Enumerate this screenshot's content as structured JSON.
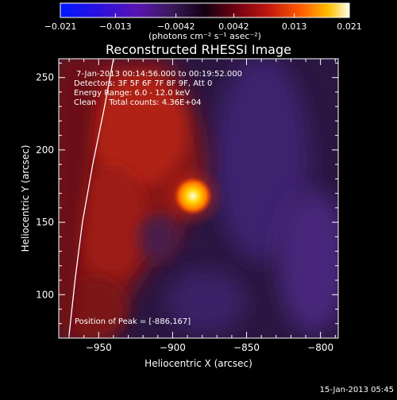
{
  "colorbar": {
    "tick_labels": [
      "−0.021",
      "−0.013",
      "−0.0042",
      "0.0042",
      "0.013",
      "0.021"
    ],
    "unit_label": "(photons cm⁻² s⁻¹ asec⁻²)",
    "range": [
      -0.021,
      0.021
    ]
  },
  "title": "Reconstructed RHESSI Image",
  "annotations": {
    "time_range": "7-Jan-2013 00:14:56.000 to 00:19:52.000",
    "detectors": "Detectors: 3F 5F 6F 7F 8F 9F, Att 0",
    "energy_range": "Energy Range: 6.0 - 12.0 keV",
    "clean_counts": "Clean     Total counts: 4.36E+04",
    "peak": "Position of Peak = [-886,167]"
  },
  "axes": {
    "xlabel": "Heliocentric X (arcsec)",
    "ylabel": "Heliocentric Y (arcsec)",
    "xlim": [
      -977,
      -788
    ],
    "ylim": [
      70,
      263
    ],
    "xticks": [
      -950,
      -900,
      -850,
      -800
    ],
    "xtick_labels": [
      "−950",
      "−900",
      "−850",
      "−800"
    ],
    "yticks": [
      100,
      150,
      200,
      250
    ],
    "ytick_labels": [
      "100",
      "150",
      "200",
      "250"
    ]
  },
  "footer": {
    "timestamp": "15-Jan-2013 05:45"
  },
  "chart_data": {
    "type": "heatmap",
    "title": "Reconstructed RHESSI Image",
    "xlabel": "Heliocentric X (arcsec)",
    "ylabel": "Heliocentric Y (arcsec)",
    "xlim": [
      -977,
      -788
    ],
    "ylim": [
      70,
      263
    ],
    "value_range": [
      -0.021,
      0.021
    ],
    "peak_position": [
      -886,
      167
    ],
    "limb_points": [
      [
        -970,
        72
      ],
      [
        -966,
        110
      ],
      [
        -961,
        150
      ],
      [
        -954,
        190
      ],
      [
        -946,
        230
      ],
      [
        -940,
        263
      ]
    ]
  }
}
